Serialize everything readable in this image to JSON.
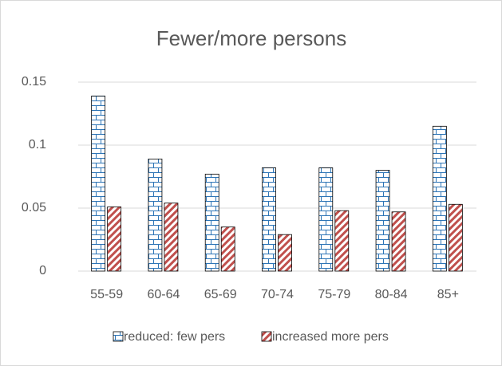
{
  "chart_data": {
    "type": "bar",
    "title": "Fewer/more persons",
    "categories": [
      "55-59",
      "60-64",
      "65-69",
      "70-74",
      "75-79",
      "80-84",
      "85+"
    ],
    "series": [
      {
        "name": "reduced: few pers",
        "color": "#2e75b6",
        "values": [
          0.139,
          0.089,
          0.077,
          0.082,
          0.082,
          0.08,
          0.115
        ]
      },
      {
        "name": "increased more pers",
        "color": "#c0504d",
        "values": [
          0.051,
          0.054,
          0.035,
          0.029,
          0.048,
          0.047,
          0.053
        ]
      }
    ],
    "ylim": [
      0,
      0.15
    ],
    "yticks": [
      0,
      0.05,
      0.1,
      0.15
    ],
    "grid": true,
    "legend": "bottom"
  }
}
